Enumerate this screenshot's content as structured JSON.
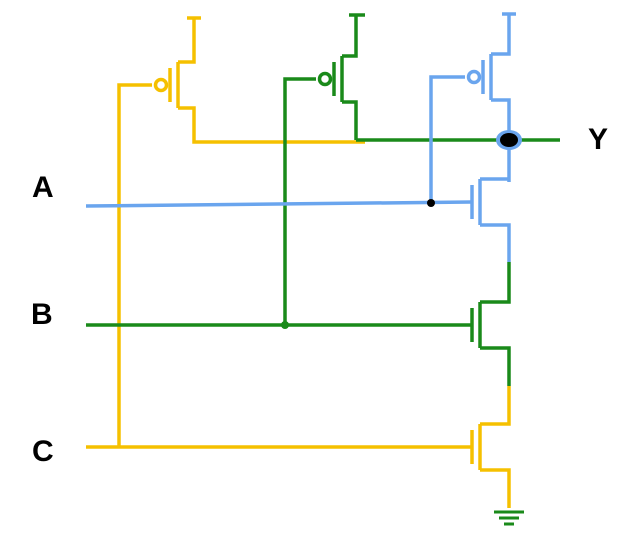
{
  "diagram": {
    "inputs": [
      {
        "label": "A",
        "color": "#6aa5ee"
      },
      {
        "label": "B",
        "color": "#1a8a1a"
      },
      {
        "label": "C",
        "color": "#f5c000"
      }
    ],
    "output": {
      "label": "Y"
    },
    "colors": {
      "A": "#6aa5ee",
      "B": "#1a8a1a",
      "C": "#f5c000",
      "node": "#000000",
      "ground": "#1a8a1a"
    }
  }
}
